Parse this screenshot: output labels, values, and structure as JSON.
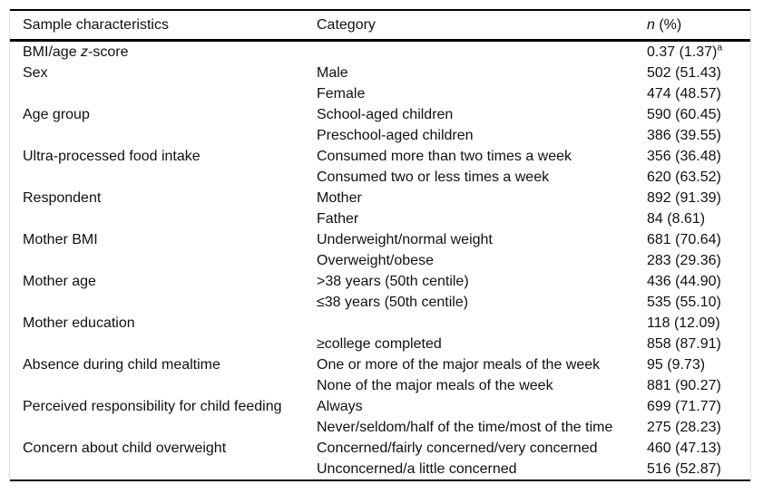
{
  "table": {
    "colors": {
      "background": "#ffffff",
      "text": "#111111",
      "rule": "#000000",
      "side_rule": "#e3e3e3"
    },
    "columns": [
      "Sample characteristics",
      "Category",
      [
        {
          "t": "n",
          "i": true
        },
        {
          "t": " (%)"
        }
      ]
    ],
    "rows": [
      {
        "c1": [
          {
            "t": "BMI/age "
          },
          {
            "t": "z",
            "i": true
          },
          {
            "t": "-score"
          }
        ],
        "c2": "",
        "c3": [
          {
            "t": "0.37 (1.37)"
          },
          {
            "t": "a",
            "s": true
          }
        ]
      },
      {
        "c1": "Sex",
        "c2": "Male",
        "c3": "502 (51.43)"
      },
      {
        "c1": "",
        "c2": "Female",
        "c3": "474 (48.57)"
      },
      {
        "c1": "Age group",
        "c2": "School-aged children",
        "c3": "590 (60.45)"
      },
      {
        "c1": "",
        "c2": "Preschool-aged children",
        "c3": "386 (39.55)"
      },
      {
        "c1": "Ultra-processed food intake",
        "c2": "Consumed more than two times a week",
        "c3": "356 (36.48)"
      },
      {
        "c1": "",
        "c2": "Consumed two or less times a week",
        "c3": "620 (63.52)"
      },
      {
        "c1": "Respondent",
        "c2": "Mother",
        "c3": "892 (91.39)"
      },
      {
        "c1": "",
        "c2": "Father",
        "c3": "84 (8.61)"
      },
      {
        "c1": "Mother BMI",
        "c2": "Underweight/normal weight",
        "c3": "681 (70.64)"
      },
      {
        "c1": "",
        "c2": "Overweight/obese",
        "c3": "283 (29.36)"
      },
      {
        "c1": "Mother age",
        "c2": ">38 years (50th centile)",
        "c3": "436 (44.90)"
      },
      {
        "c1": "",
        "c2": "≤38 years (50th centile)",
        "c3": "535 (55.10)"
      },
      {
        "c1": "Mother education",
        "c2": "",
        "c3": "118 (12.09)"
      },
      {
        "c1": "",
        "c2": "≥college completed",
        "c3": "858 (87.91)"
      },
      {
        "c1": "Absence during child mealtime",
        "c2": "One or more of the major meals of the week",
        "c3": "95 (9.73)"
      },
      {
        "c1": "",
        "c2": "None of the major meals of the week",
        "c3": "881 (90.27)"
      },
      {
        "c1": "Perceived responsibility for child feeding",
        "c2": "Always",
        "c3": "699 (71.77)"
      },
      {
        "c1": "",
        "c2": "Never/seldom/half of the time/most of the time",
        "c3": "275 (28.23)"
      },
      {
        "c1": "Concern about child overweight",
        "c2": "Concerned/fairly concerned/very concerned",
        "c3": "460 (47.13)"
      },
      {
        "c1": "",
        "c2": "Unconcerned/a little concerned",
        "c3": "516 (52.87)"
      }
    ]
  }
}
